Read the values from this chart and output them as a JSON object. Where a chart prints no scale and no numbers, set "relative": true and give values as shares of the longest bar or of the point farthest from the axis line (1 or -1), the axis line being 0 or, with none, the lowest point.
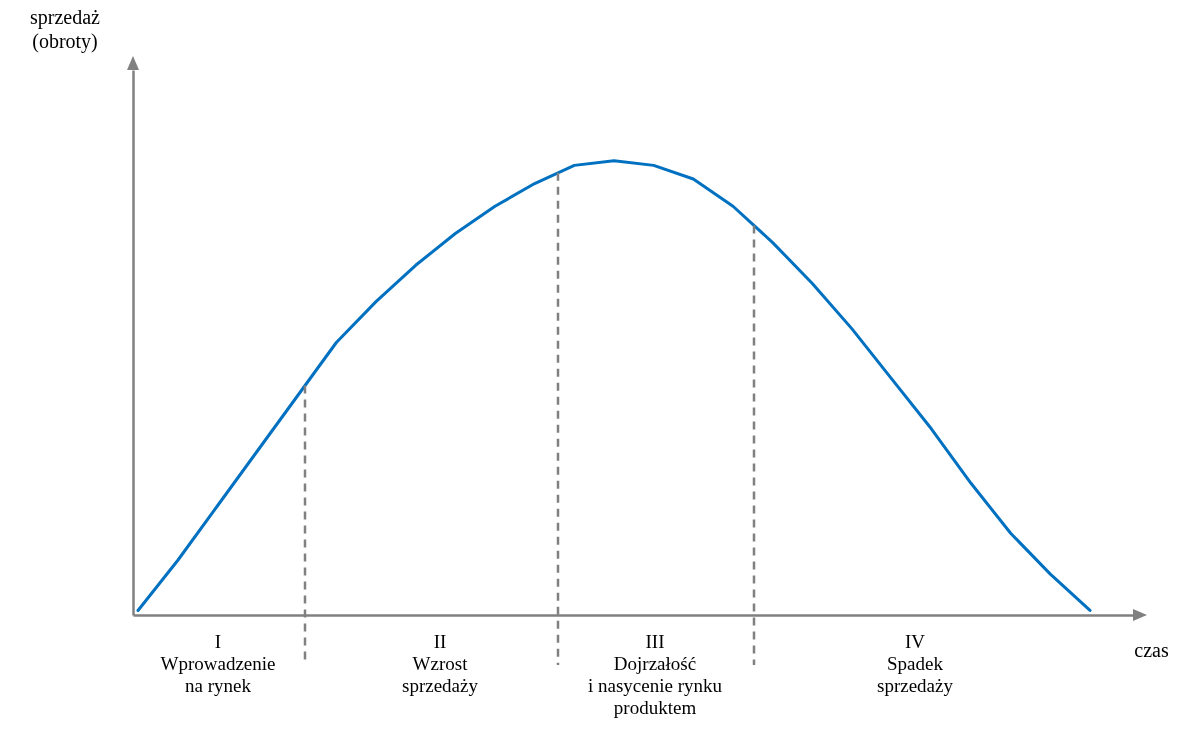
{
  "chart_data": {
    "type": "line",
    "relative": true,
    "xlabel": "czas",
    "marker": "none",
    "line_style": "solid",
    "categories": [
      null,
      null,
      null,
      null,
      null,
      null,
      null,
      null,
      null,
      null,
      null,
      null,
      null,
      null,
      null,
      null,
      null,
      null,
      null,
      null,
      null,
      null,
      null,
      null,
      null
    ],
    "series": [
      {
        "color": "#0070c0",
        "values": [
          0.01,
          0.12,
          0.24,
          0.36,
          0.48,
          0.6,
          0.69,
          0.77,
          0.84,
          0.9,
          0.95,
          0.99,
          1.0,
          0.99,
          0.96,
          0.9,
          0.82,
          0.73,
          0.63,
          0.52,
          0.41,
          0.29,
          0.18,
          0.09,
          0.01
        ]
      }
    ],
    "annotations": [
      "sprzedaż\n(obroty)",
      "I\nWprowadzenie\nna rynek",
      "II\nWzrost\nsprzedaży",
      "III\nDojrzałość\ni nasycenie rynku\nproduktem",
      "IV\nSpadek\nsprzedaży"
    ]
  }
}
